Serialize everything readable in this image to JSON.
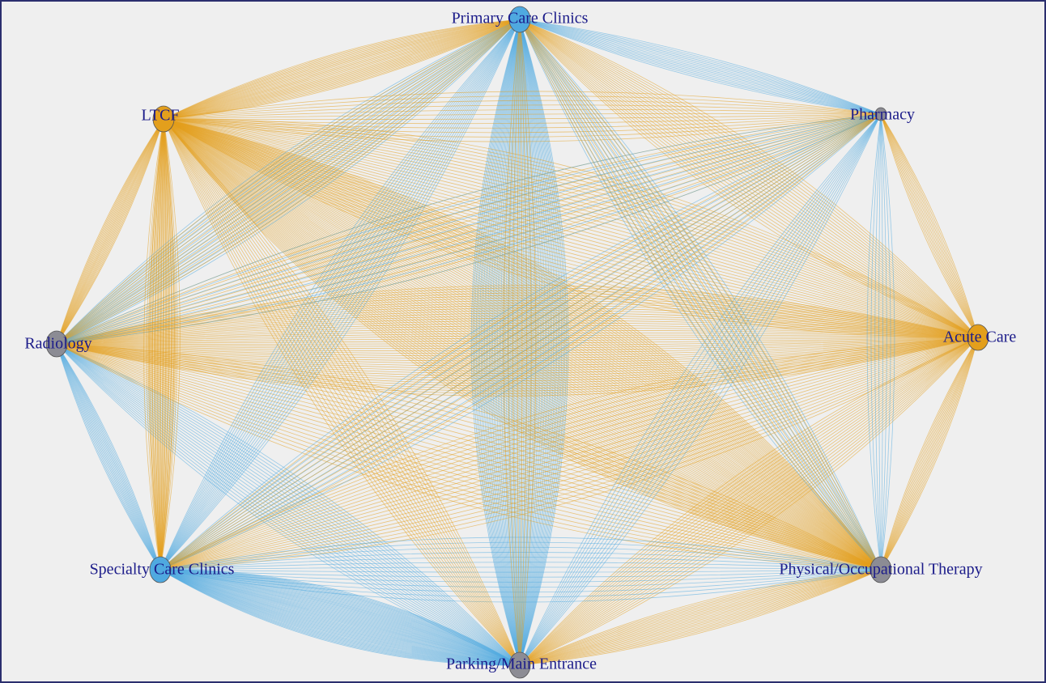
{
  "nodes": [
    {
      "label": "Primary Care Clinics",
      "color": "#4fa9e0"
    },
    {
      "label": "LTCF",
      "color": "#e39f1c"
    },
    {
      "label": "Pharmacy",
      "color": "#8c8c94"
    },
    {
      "label": "Acute Care",
      "color": "#e39f1c"
    },
    {
      "label": "Physical/Occupational Therapy",
      "color": "#8c8c94"
    },
    {
      "label": "Parking/Main Entrance",
      "color": "#8c8c94"
    },
    {
      "label": "Specialty Care Clinics",
      "color": "#4fa9e0"
    },
    {
      "label": "Radiology",
      "color": "#8c8c94"
    }
  ]
}
